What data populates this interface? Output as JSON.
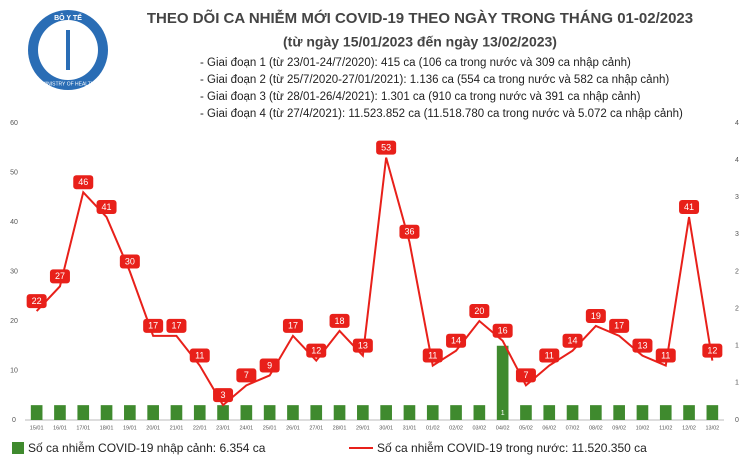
{
  "header": {
    "logo_top": "BỘ Y TẾ",
    "logo_bottom": "MINISTRY OF HEALTH"
  },
  "chart_data": {
    "type": "combo",
    "title": "THEO DÕI CA NHIỄM MỚI COVID-19 THEO NGÀY TRONG THÁNG 01-02/2023",
    "subtitle": "(từ ngày 15/01/2023 đến ngày 13/02/2023)",
    "annotations": [
      "- Giai đoạn 1 (từ 23/01-24/7/2020): 415 ca (106 ca trong nước và 309 ca nhập cảnh)",
      "- Giai đoạn 2 (từ 25/7/2020-27/01/2021): 1.136 ca (554 ca trong nước và 582 ca nhập cảnh)",
      "- Giai đoạn 3 (từ 28/01-26/4/2021): 1.301 ca (910 ca trong nước và 391 ca nhập cảnh)",
      "- Giai đoạn 4 (từ 27/4/2021): 11.523.852 ca (11.518.780 ca trong nước và 5.072 ca nhập cảnh)"
    ],
    "categories": [
      "15/01",
      "16/01",
      "17/01",
      "18/01",
      "19/01",
      "20/01",
      "21/01",
      "22/01",
      "23/01",
      "24/01",
      "25/01",
      "26/01",
      "27/01",
      "28/01",
      "29/01",
      "30/01",
      "31/01",
      "01/02",
      "02/02",
      "03/02",
      "04/02",
      "05/02",
      "06/02",
      "07/02",
      "08/02",
      "09/02",
      "10/02",
      "11/02",
      "12/02",
      "13/02"
    ],
    "series": [
      {
        "name": "Số ca nhiễm COVID-19 nhập cảnh: 6.354 ca",
        "type": "bar",
        "axis": "y2",
        "color": "#3f8a2e",
        "values": [
          0.2,
          0.2,
          0.2,
          0.2,
          0.2,
          0.2,
          0.2,
          0.2,
          0.2,
          0.2,
          0.2,
          0.2,
          0.2,
          0.2,
          0.2,
          0.2,
          0.2,
          0.2,
          0.2,
          0.2,
          1,
          0.2,
          0.2,
          0.2,
          0.2,
          0.2,
          0.2,
          0.2,
          0.2,
          0.2
        ],
        "value_labels": [
          null,
          null,
          null,
          null,
          null,
          null,
          null,
          null,
          null,
          null,
          null,
          null,
          null,
          null,
          null,
          null,
          null,
          null,
          null,
          null,
          "1",
          null,
          null,
          null,
          null,
          null,
          null,
          null,
          null,
          null
        ]
      },
      {
        "name": "Số ca nhiễm COVID-19 trong nước: 11.520.350 ca",
        "type": "line",
        "color": "#e8201a",
        "values": [
          22,
          27,
          46,
          41,
          30,
          17,
          17,
          11,
          3,
          7,
          9,
          17,
          12,
          18,
          13,
          53,
          36,
          11,
          14,
          20,
          16,
          7,
          11,
          14,
          19,
          17,
          13,
          11,
          41,
          12
        ]
      }
    ],
    "ylim": [
      0,
      60
    ],
    "yticks": [
      0,
      10,
      20,
      30,
      40,
      50,
      60
    ],
    "y2lim": [
      0,
      4
    ],
    "y2ticks": [
      0,
      {
        "value": 0.5,
        "label": "1"
      },
      1,
      {
        "value": 1.5,
        "label": "2"
      },
      2,
      {
        "value": 2.5,
        "label": "3"
      },
      3,
      {
        "value": 3.5,
        "label": "4"
      },
      4
    ]
  }
}
